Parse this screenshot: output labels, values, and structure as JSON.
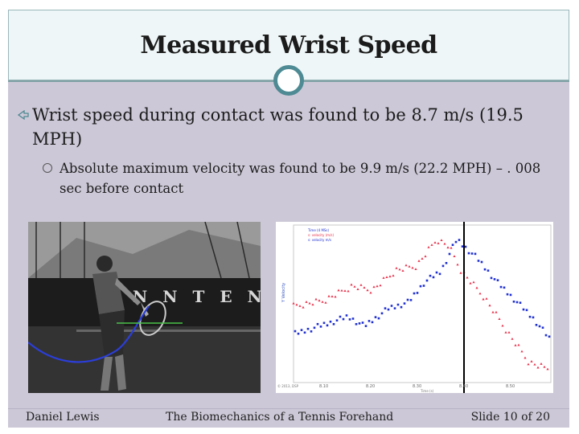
{
  "title": "Measured Wrist Speed",
  "bullets": {
    "main": "Wrist speed during contact was found to be 8.7 m/s (19.5 MPH)",
    "sub": "Absolute maximum velocity was found to be 9.9 m/s (22.2 MPH) – . 008 sec before contact"
  },
  "photo": {
    "banner_text": "N N  T E N"
  },
  "graph": {
    "legend": [
      "Time (4 MSs)",
      "s: velocity (m/s)",
      "s: velocity m/s"
    ],
    "x_ticks": [
      "8.10",
      "8.20",
      "8.30",
      "8.40",
      "8.50"
    ],
    "x_label": "Time (s)",
    "y_label": "Y Velocity",
    "copyright": "© 2013, DSP",
    "colors": {
      "series_red": "#e8304a",
      "series_blue": "#1e2fd1",
      "marker": "#000000"
    }
  },
  "footer": {
    "author": "Daniel Lewis",
    "topic": "The Biomechanics of a Tennis Forehand",
    "slide": "Slide 10 of 20"
  },
  "theme": {
    "accent": "#4d8a93",
    "body_bg": "#cdc8d7",
    "title_bg": "#eff6f7"
  }
}
